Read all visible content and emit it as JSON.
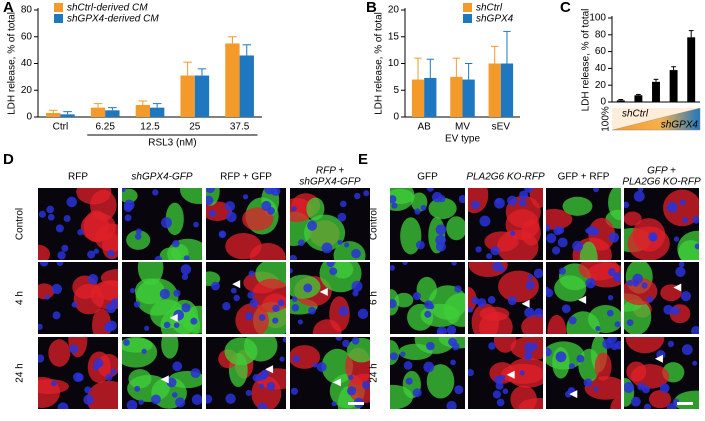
{
  "chart_data": [
    {
      "type": "bar",
      "panel": "A",
      "y_label": "LDH release, % of total",
      "x_label": "RSL3 (nM)",
      "categories": [
        "Ctrl",
        "6.25",
        "12.5",
        "25",
        "37.5"
      ],
      "series": [
        {
          "name": "shCtrl-derived CM",
          "color": "#f39a2b",
          "values": [
            3,
            7,
            9,
            31,
            55
          ],
          "errors": [
            2,
            3,
            3,
            10,
            5
          ]
        },
        {
          "name": "shGPX4-derived CM",
          "color": "#1f78bf",
          "values": [
            2,
            5,
            7,
            31,
            46
          ],
          "errors": [
            2,
            2,
            3,
            5,
            8
          ]
        }
      ],
      "ylim": [
        0,
        80
      ],
      "yticks": [
        0,
        20,
        40,
        60,
        80
      ],
      "legend": "top-left"
    },
    {
      "type": "bar",
      "panel": "B",
      "y_label": "LDH release, % of total",
      "x_label": "EV type",
      "categories": [
        "AB",
        "MV",
        "sEV"
      ],
      "series": [
        {
          "name": "shCtrl",
          "color": "#f39a2b",
          "values": [
            7,
            7.5,
            10
          ],
          "errors": [
            4,
            3.5,
            3.2
          ]
        },
        {
          "name": "shGPX4",
          "color": "#1f78bf",
          "values": [
            7.3,
            7,
            10
          ],
          "errors": [
            3.5,
            3,
            6
          ]
        }
      ],
      "ylim": [
        0,
        20
      ],
      "yticks": [
        0,
        5,
        10,
        15,
        20
      ],
      "legend": "top-right"
    },
    {
      "type": "bar",
      "panel": "C",
      "y_label": "LDH release, % of total",
      "categories": [
        null,
        null,
        null,
        null,
        null
      ],
      "series": [
        {
          "color": "#000000",
          "values": [
            2,
            8,
            24,
            38,
            77
          ],
          "errors": [
            1,
            1,
            3,
            4,
            8
          ]
        }
      ],
      "ylim": [
        0,
        100
      ],
      "yticks": [
        0,
        20,
        40,
        60,
        80,
        100
      ],
      "annotations": [
        "100%",
        "shCtrl",
        "shGPX4"
      ]
    }
  ],
  "panels": [
    {
      "label": "D",
      "columns": [
        [
          "RFP"
        ],
        [
          "shGPX4-GFP"
        ],
        [
          "RFP + GFP"
        ],
        [
          "RFP +",
          "shGPX4-GFP"
        ]
      ],
      "rows": [
        "Control",
        "4 h",
        "24 h"
      ]
    },
    {
      "label": "E",
      "columns": [
        [
          "GFP"
        ],
        [
          "PLA2G6 KO-RFP"
        ],
        [
          "GFP + RFP"
        ],
        [
          "GFP +",
          "PLA2G6 KO-RFP"
        ]
      ],
      "rows": [
        "Control",
        "6 h",
        "24 h"
      ]
    }
  ]
}
